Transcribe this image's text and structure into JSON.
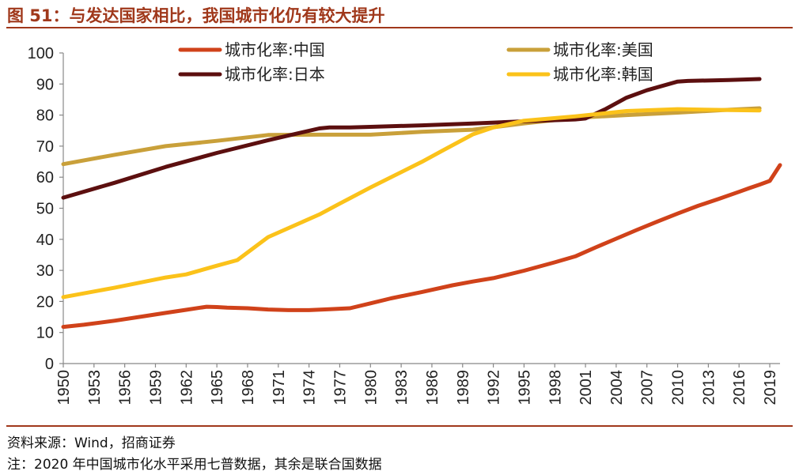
{
  "title": "图 51：与发达国家相比，我国城市化仍有较大提升",
  "source": "资料来源：Wind，招商证券",
  "note": "注：2020 年中国城市化水平采用七普数据，其余是联合国数据",
  "colors": {
    "accent": "#a0381b"
  },
  "chart_data": {
    "type": "line",
    "title": "",
    "xlabel": "",
    "ylabel": "",
    "ylim": [
      0,
      100
    ],
    "yticks": [
      0,
      10,
      20,
      30,
      40,
      50,
      60,
      70,
      80,
      90,
      100
    ],
    "xlim": [
      1950,
      2020
    ],
    "xticks": [
      "1950",
      "1953",
      "1956",
      "1959",
      "1962",
      "1965",
      "1968",
      "1971",
      "1974",
      "1977",
      "1980",
      "1983",
      "1986",
      "1989",
      "1992",
      "1995",
      "1998",
      "2001",
      "2004",
      "2007",
      "2010",
      "2013",
      "2016",
      "2019"
    ],
    "grid": false,
    "legend": "top, two columns",
    "series": [
      {
        "name": "城市化率:中国",
        "color": "#d0421a",
        "x": [
          1950,
          1952,
          1955,
          1958,
          1960,
          1962,
          1964,
          1965,
          1966,
          1968,
          1970,
          1972,
          1974,
          1976,
          1978,
          1980,
          1982,
          1985,
          1988,
          1990,
          1992,
          1995,
          1998,
          2000,
          2002,
          2004,
          2006,
          2008,
          2010,
          2012,
          2014,
          2016,
          2017,
          2018,
          2019,
          2020
        ],
        "y": [
          11.8,
          12.5,
          13.8,
          15.3,
          16.3,
          17.3,
          18.3,
          18.2,
          18.0,
          17.8,
          17.4,
          17.2,
          17.2,
          17.5,
          17.8,
          19.4,
          21.0,
          23.0,
          25.2,
          26.4,
          27.5,
          29.9,
          32.6,
          34.5,
          37.4,
          40.2,
          43.0,
          45.7,
          48.3,
          50.8,
          53.0,
          55.3,
          56.5,
          57.6,
          58.8,
          63.9
        ]
      },
      {
        "name": "城市化率:美国",
        "color": "#c9a03a",
        "x": [
          1950,
          1955,
          1960,
          1965,
          1970,
          1975,
          1980,
          1985,
          1990,
          1995,
          2000,
          2005,
          2010,
          2015,
          2018
        ],
        "y": [
          64.2,
          67.2,
          70.0,
          71.7,
          73.6,
          73.7,
          73.7,
          74.6,
          75.3,
          77.3,
          79.1,
          80.0,
          80.8,
          81.7,
          82.2
        ]
      },
      {
        "name": "城市化率:日本",
        "color": "#5c0f0f",
        "x": [
          1950,
          1955,
          1960,
          1965,
          1970,
          1975,
          1976,
          1978,
          1980,
          1985,
          1990,
          1995,
          2000,
          2001,
          2003,
          2005,
          2007,
          2010,
          2011,
          2015,
          2018
        ],
        "y": [
          53.4,
          58.2,
          63.3,
          67.8,
          71.9,
          75.7,
          76.0,
          76.0,
          76.2,
          76.7,
          77.3,
          78.0,
          78.6,
          78.9,
          82.0,
          85.6,
          88.0,
          90.8,
          91.0,
          91.3,
          91.6
        ]
      },
      {
        "name": "城市化率:韩国",
        "color": "#fbc21a",
        "x": [
          1950,
          1955,
          1960,
          1962,
          1965,
          1967,
          1970,
          1975,
          1977,
          1980,
          1985,
          1987,
          1990,
          1992,
          1995,
          2000,
          2005,
          2010,
          2015,
          2018
        ],
        "y": [
          21.4,
          24.4,
          27.7,
          28.7,
          31.5,
          33.3,
          40.7,
          48.0,
          51.5,
          56.7,
          64.9,
          68.5,
          73.8,
          76.0,
          78.2,
          79.6,
          81.3,
          81.9,
          81.6,
          81.5
        ]
      }
    ]
  }
}
